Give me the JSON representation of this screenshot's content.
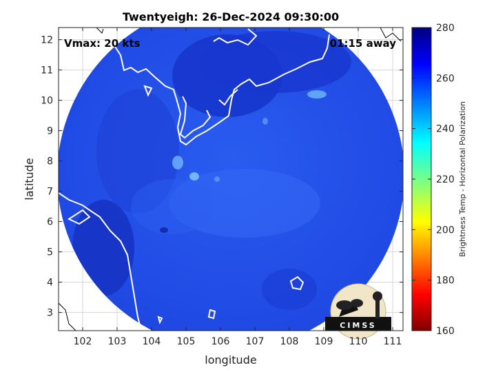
{
  "title": "Twentyeigh: 26-Dec-2024 09:30:00",
  "overlay": {
    "vmax": "Vmax: 20 kts",
    "time_away": "01:15 away"
  },
  "axes": {
    "xlabel": "longitude",
    "ylabel": "latitude",
    "xlim": [
      101.3,
      111.3
    ],
    "ylim": [
      2.4,
      12.4
    ],
    "xticks": [
      "102",
      "103",
      "104",
      "105",
      "106",
      "107",
      "108",
      "109",
      "110",
      "111"
    ],
    "yticks": [
      "3",
      "4",
      "5",
      "6",
      "7",
      "8",
      "9",
      "10",
      "11",
      "12"
    ],
    "grid": true
  },
  "colorbar": {
    "label": "Brightness Temp - Horizontal Polarization",
    "min": 160,
    "max": 280,
    "ticks": [
      "160",
      "180",
      "200",
      "220",
      "240",
      "260",
      "280"
    ],
    "colormap": "jet"
  },
  "logo": {
    "text": "CIMSS"
  },
  "colors": {
    "swath_base": "#1f4fe8",
    "swath_dark": "#1530c8",
    "coast": "#ffffff"
  }
}
